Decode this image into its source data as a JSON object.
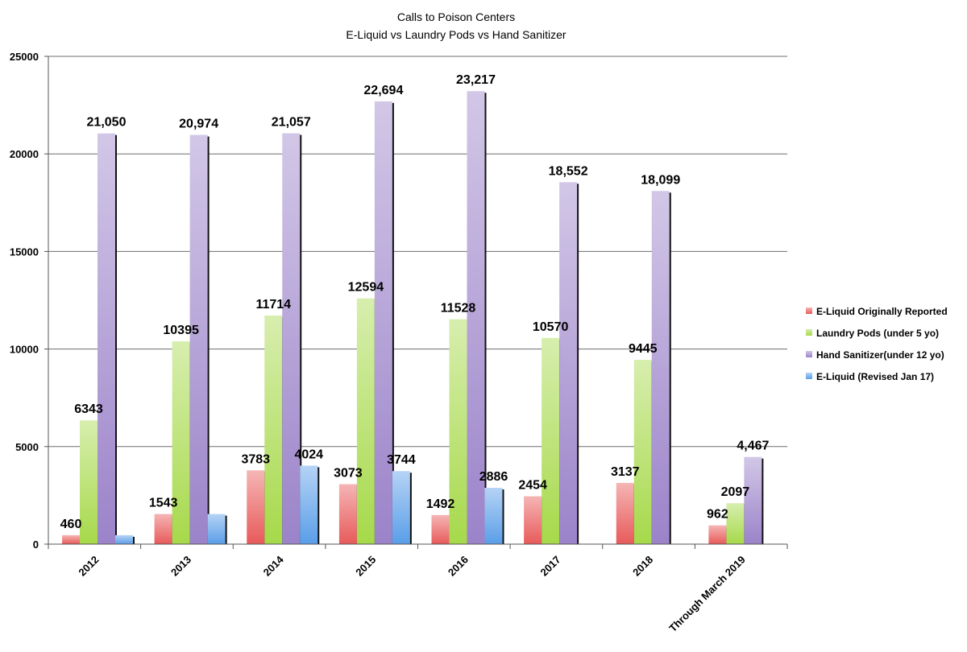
{
  "chart_data": {
    "type": "bar",
    "title": [
      "Calls to Poison Centers",
      "E-Liquid vs Laundry Pods vs Hand Sanitizer"
    ],
    "categories": [
      "2012",
      "2013",
      "2014",
      "2015",
      "2016",
      "2017",
      "2018",
      "Through March 2019"
    ],
    "ylim": [
      0,
      25000
    ],
    "yticks": [
      "0",
      "5000",
      "10000",
      "15000",
      "20000",
      "25000"
    ],
    "grid": true,
    "legend_position": "right",
    "series": [
      {
        "name": "E-Liquid Originally Reported",
        "color": "#e85a5a",
        "values": [
          460,
          1543,
          3783,
          3073,
          1492,
          2454,
          3137,
          962
        ],
        "labels": [
          "460",
          "1543",
          "3783",
          "3073",
          "1492",
          "2454",
          "3137",
          "962"
        ]
      },
      {
        "name": "Laundry Pods (under 5 yo)",
        "color": "#a6d94a",
        "values": [
          6343,
          10395,
          11714,
          12594,
          11528,
          10570,
          9445,
          2097
        ],
        "labels": [
          "6343",
          "10395",
          "11714",
          "12594",
          "11528",
          "10570",
          "9445",
          "2097"
        ]
      },
      {
        "name": "Hand Sanitizer(under 12 yo)",
        "color": "#9b83c9",
        "values": [
          21050,
          20974,
          21057,
          22694,
          23217,
          18552,
          18099,
          4467
        ],
        "labels": [
          "21,050",
          "20,974",
          "21,057",
          "22,694",
          "23,217",
          "18,552",
          "18,099",
          "4,467"
        ]
      },
      {
        "name": "E-Liquid (Revised Jan 17)",
        "color": "#5a9ee8",
        "values": [
          460,
          1543,
          4024,
          3744,
          2886,
          null,
          null,
          null
        ],
        "labels": [
          "",
          "",
          "4024",
          "3744",
          "2886",
          "",
          "",
          ""
        ]
      }
    ]
  }
}
